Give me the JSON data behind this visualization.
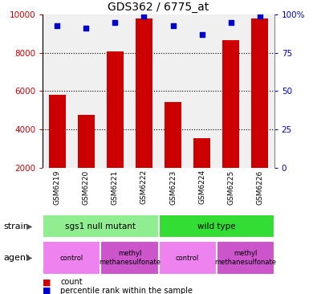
{
  "title": "GDS362 / 6775_at",
  "samples": [
    "GSM6219",
    "GSM6220",
    "GSM6221",
    "GSM6222",
    "GSM6223",
    "GSM6224",
    "GSM6225",
    "GSM6226"
  ],
  "counts": [
    5800,
    4750,
    8100,
    9800,
    5450,
    3550,
    8650,
    9800
  ],
  "percentiles": [
    93,
    91,
    95,
    99,
    93,
    87,
    95,
    99
  ],
  "ylim_left": [
    2000,
    10000
  ],
  "ylim_right": [
    0,
    100
  ],
  "yticks_left": [
    2000,
    4000,
    6000,
    8000,
    10000
  ],
  "yticks_right": [
    0,
    25,
    50,
    75,
    100
  ],
  "bar_color": "#cc0000",
  "scatter_color": "#0000cc",
  "strain_groups": [
    {
      "label": "sgs1 null mutant",
      "start": 0,
      "end": 4,
      "color": "#90ee90"
    },
    {
      "label": "wild type",
      "start": 4,
      "end": 8,
      "color": "#33dd33"
    }
  ],
  "agent_groups": [
    {
      "label": "control",
      "start": 0,
      "end": 2,
      "color": "#ee82ee"
    },
    {
      "label": "methyl\nmethanesulfonate",
      "start": 2,
      "end": 4,
      "color": "#cc55cc"
    },
    {
      "label": "control",
      "start": 4,
      "end": 6,
      "color": "#ee82ee"
    },
    {
      "label": "methyl\nmethanesulfonate",
      "start": 6,
      "end": 8,
      "color": "#cc55cc"
    }
  ],
  "tick_label_color": "#cc0000",
  "right_tick_color": "#0000cc",
  "background_color": "#ffffff",
  "plot_bg_color": "#f0f0f0",
  "grid_color": "#000000",
  "sample_label_bg": "#c8c8c8",
  "border_color": "#888888"
}
